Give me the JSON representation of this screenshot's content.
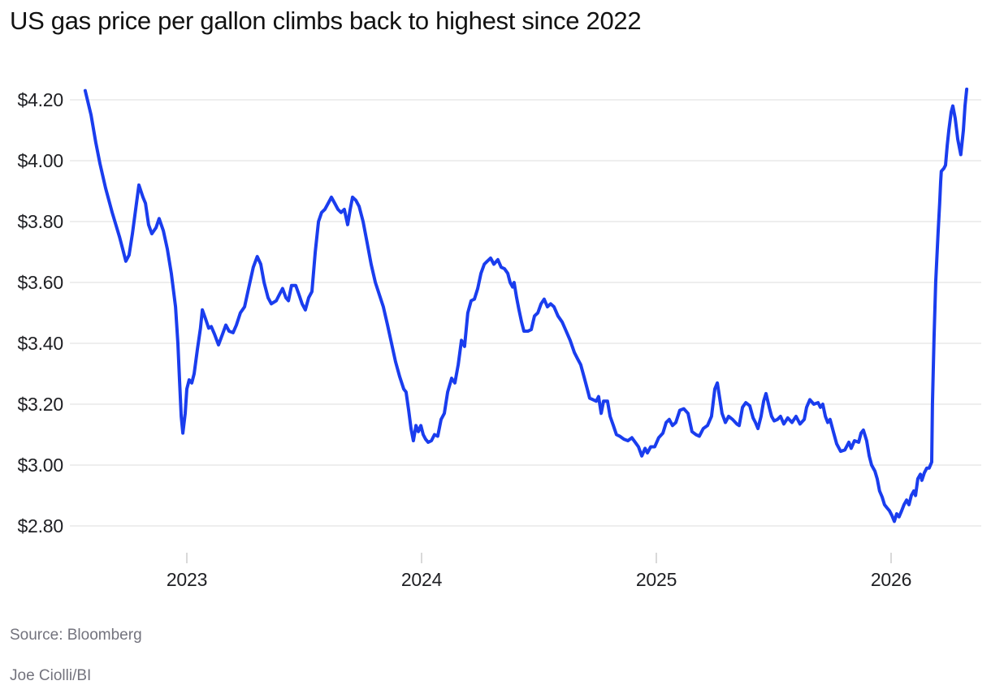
{
  "title": "US gas price per gallon climbs back to highest since 2022",
  "source": "Source: Bloomberg",
  "credit": "Joe Ciolli/BI",
  "colors": {
    "line": "#1a3dee",
    "gridline": "#e8e8e8",
    "tick": "#d9d9d9",
    "title_text": "#121212",
    "axis_text": "#1e1f23",
    "source_text": "#73737d",
    "background": "#ffffff"
  },
  "chart_data": {
    "type": "line",
    "title": "US gas price per gallon climbs back to highest since 2022",
    "xlabel": "",
    "ylabel": "",
    "grid": "horizontal",
    "legend": "none",
    "x_range": [
      2022.55,
      2026.35
    ],
    "y_range": [
      2.72,
      4.3
    ],
    "x_ticks": [
      {
        "value": 2023,
        "label": "2023"
      },
      {
        "value": 2024,
        "label": "2024"
      },
      {
        "value": 2025,
        "label": "2025"
      },
      {
        "value": 2026,
        "label": "2026"
      }
    ],
    "y_ticks": [
      {
        "value": 4.2,
        "label": "$4.20"
      },
      {
        "value": 4.0,
        "label": "$4.00"
      },
      {
        "value": 3.8,
        "label": "$3.80"
      },
      {
        "value": 3.6,
        "label": "$3.60"
      },
      {
        "value": 3.4,
        "label": "$3.40"
      },
      {
        "value": 3.2,
        "label": "$3.20"
      },
      {
        "value": 3.0,
        "label": "$3.00"
      },
      {
        "value": 2.8,
        "label": "$2.80"
      }
    ],
    "points": [
      [
        2022.567,
        4.23
      ],
      [
        2022.592,
        4.15
      ],
      [
        2022.612,
        4.06
      ],
      [
        2022.63,
        3.99
      ],
      [
        2022.654,
        3.91
      ],
      [
        2022.682,
        3.83
      ],
      [
        2022.713,
        3.75
      ],
      [
        2022.73,
        3.7
      ],
      [
        2022.74,
        3.67
      ],
      [
        2022.754,
        3.69
      ],
      [
        2022.768,
        3.76
      ],
      [
        2022.782,
        3.84
      ],
      [
        2022.796,
        3.92
      ],
      [
        2022.813,
        3.88
      ],
      [
        2022.824,
        3.86
      ],
      [
        2022.837,
        3.79
      ],
      [
        2022.851,
        3.76
      ],
      [
        2022.869,
        3.78
      ],
      [
        2022.882,
        3.81
      ],
      [
        2022.9,
        3.77
      ],
      [
        2022.917,
        3.71
      ],
      [
        2022.934,
        3.63
      ],
      [
        2022.952,
        3.52
      ],
      [
        2022.962,
        3.4
      ],
      [
        2022.969,
        3.28
      ],
      [
        2022.976,
        3.16
      ],
      [
        2022.983,
        3.105
      ],
      [
        2022.993,
        3.17
      ],
      [
        2023.0,
        3.25
      ],
      [
        2023.01,
        3.28
      ],
      [
        2023.021,
        3.27
      ],
      [
        2023.031,
        3.3
      ],
      [
        2023.045,
        3.38
      ],
      [
        2023.058,
        3.45
      ],
      [
        2023.066,
        3.51
      ],
      [
        2023.08,
        3.48
      ],
      [
        2023.093,
        3.45
      ],
      [
        2023.104,
        3.455
      ],
      [
        2023.118,
        3.43
      ],
      [
        2023.135,
        3.395
      ],
      [
        2023.152,
        3.43
      ],
      [
        2023.166,
        3.46
      ],
      [
        2023.18,
        3.44
      ],
      [
        2023.197,
        3.435
      ],
      [
        2023.211,
        3.46
      ],
      [
        2023.228,
        3.5
      ],
      [
        2023.246,
        3.52
      ],
      [
        2023.263,
        3.58
      ],
      [
        2023.283,
        3.65
      ],
      [
        2023.3,
        3.685
      ],
      [
        2023.315,
        3.66
      ],
      [
        2023.329,
        3.6
      ],
      [
        2023.346,
        3.55
      ],
      [
        2023.36,
        3.53
      ],
      [
        2023.381,
        3.54
      ],
      [
        2023.394,
        3.56
      ],
      [
        2023.408,
        3.58
      ],
      [
        2023.422,
        3.55
      ],
      [
        2023.433,
        3.54
      ],
      [
        2023.446,
        3.59
      ],
      [
        2023.464,
        3.59
      ],
      [
        2023.478,
        3.56
      ],
      [
        2023.491,
        3.53
      ],
      [
        2023.505,
        3.51
      ],
      [
        2023.519,
        3.55
      ],
      [
        2023.533,
        3.57
      ],
      [
        2023.547,
        3.7
      ],
      [
        2023.561,
        3.8
      ],
      [
        2023.574,
        3.83
      ],
      [
        2023.588,
        3.84
      ],
      [
        2023.602,
        3.86
      ],
      [
        2023.616,
        3.88
      ],
      [
        2023.63,
        3.86
      ],
      [
        2023.644,
        3.84
      ],
      [
        2023.657,
        3.83
      ],
      [
        2023.671,
        3.84
      ],
      [
        2023.685,
        3.79
      ],
      [
        2023.696,
        3.84
      ],
      [
        2023.706,
        3.88
      ],
      [
        2023.72,
        3.87
      ],
      [
        2023.734,
        3.85
      ],
      [
        2023.751,
        3.8
      ],
      [
        2023.768,
        3.73
      ],
      [
        2023.785,
        3.66
      ],
      [
        2023.803,
        3.6
      ],
      [
        2023.82,
        3.56
      ],
      [
        2023.837,
        3.52
      ],
      [
        2023.855,
        3.46
      ],
      [
        2023.872,
        3.4
      ],
      [
        2023.889,
        3.34
      ],
      [
        2023.907,
        3.29
      ],
      [
        2023.924,
        3.25
      ],
      [
        2023.934,
        3.24
      ],
      [
        2023.945,
        3.18
      ],
      [
        2023.955,
        3.12
      ],
      [
        2023.965,
        3.08
      ],
      [
        2023.976,
        3.13
      ],
      [
        2023.986,
        3.11
      ],
      [
        2023.997,
        3.13
      ],
      [
        2024.007,
        3.1
      ],
      [
        2024.017,
        3.085
      ],
      [
        2024.028,
        3.075
      ],
      [
        2024.042,
        3.08
      ],
      [
        2024.055,
        3.1
      ],
      [
        2024.069,
        3.095
      ],
      [
        2024.083,
        3.15
      ],
      [
        2024.097,
        3.17
      ],
      [
        2024.111,
        3.24
      ],
      [
        2024.128,
        3.285
      ],
      [
        2024.142,
        3.27
      ],
      [
        2024.156,
        3.33
      ],
      [
        2024.17,
        3.41
      ],
      [
        2024.183,
        3.39
      ],
      [
        2024.197,
        3.5
      ],
      [
        2024.211,
        3.54
      ],
      [
        2024.225,
        3.545
      ],
      [
        2024.239,
        3.58
      ],
      [
        2024.253,
        3.63
      ],
      [
        2024.267,
        3.66
      ],
      [
        2024.28,
        3.67
      ],
      [
        2024.294,
        3.68
      ],
      [
        2024.308,
        3.66
      ],
      [
        2024.325,
        3.675
      ],
      [
        2024.339,
        3.65
      ],
      [
        2024.353,
        3.645
      ],
      [
        2024.367,
        3.63
      ],
      [
        2024.377,
        3.6
      ],
      [
        2024.388,
        3.585
      ],
      [
        2024.394,
        3.6
      ],
      [
        2024.405,
        3.55
      ],
      [
        2024.415,
        3.51
      ],
      [
        2024.426,
        3.47
      ],
      [
        2024.436,
        3.44
      ],
      [
        2024.453,
        3.44
      ],
      [
        2024.467,
        3.445
      ],
      [
        2024.481,
        3.49
      ],
      [
        2024.495,
        3.5
      ],
      [
        2024.509,
        3.53
      ],
      [
        2024.522,
        3.545
      ],
      [
        2024.536,
        3.52
      ],
      [
        2024.55,
        3.53
      ],
      [
        2024.564,
        3.52
      ],
      [
        2024.581,
        3.49
      ],
      [
        2024.599,
        3.47
      ],
      [
        2024.616,
        3.44
      ],
      [
        2024.633,
        3.41
      ],
      [
        2024.651,
        3.37
      ],
      [
        2024.664,
        3.35
      ],
      [
        2024.678,
        3.33
      ],
      [
        2024.692,
        3.29
      ],
      [
        2024.706,
        3.25
      ],
      [
        2024.716,
        3.22
      ],
      [
        2024.73,
        3.215
      ],
      [
        2024.744,
        3.21
      ],
      [
        2024.754,
        3.225
      ],
      [
        2024.765,
        3.17
      ],
      [
        2024.775,
        3.21
      ],
      [
        2024.792,
        3.21
      ],
      [
        2024.803,
        3.16
      ],
      [
        2024.817,
        3.13
      ],
      [
        2024.83,
        3.1
      ],
      [
        2024.844,
        3.095
      ],
      [
        2024.862,
        3.085
      ],
      [
        2024.879,
        3.08
      ],
      [
        2024.896,
        3.09
      ],
      [
        2024.91,
        3.075
      ],
      [
        2024.924,
        3.06
      ],
      [
        2024.938,
        3.03
      ],
      [
        2024.952,
        3.055
      ],
      [
        2024.962,
        3.04
      ],
      [
        2024.976,
        3.06
      ],
      [
        2024.993,
        3.06
      ],
      [
        2025.01,
        3.09
      ],
      [
        2025.028,
        3.105
      ],
      [
        2025.042,
        3.14
      ],
      [
        2025.055,
        3.15
      ],
      [
        2025.069,
        3.13
      ],
      [
        2025.083,
        3.14
      ],
      [
        2025.1,
        3.18
      ],
      [
        2025.117,
        3.185
      ],
      [
        2025.135,
        3.17
      ],
      [
        2025.152,
        3.11
      ],
      [
        2025.169,
        3.1
      ],
      [
        2025.183,
        3.095
      ],
      [
        2025.2,
        3.12
      ],
      [
        2025.218,
        3.13
      ],
      [
        2025.235,
        3.16
      ],
      [
        2025.249,
        3.25
      ],
      [
        2025.26,
        3.27
      ],
      [
        2025.27,
        3.22
      ],
      [
        2025.28,
        3.17
      ],
      [
        2025.294,
        3.14
      ],
      [
        2025.308,
        3.16
      ],
      [
        2025.325,
        3.15
      ],
      [
        2025.343,
        3.135
      ],
      [
        2025.353,
        3.13
      ],
      [
        2025.367,
        3.19
      ],
      [
        2025.381,
        3.205
      ],
      [
        2025.398,
        3.195
      ],
      [
        2025.412,
        3.155
      ],
      [
        2025.422,
        3.14
      ],
      [
        2025.433,
        3.12
      ],
      [
        2025.446,
        3.16
      ],
      [
        2025.457,
        3.21
      ],
      [
        2025.467,
        3.235
      ],
      [
        2025.481,
        3.19
      ],
      [
        2025.491,
        3.16
      ],
      [
        2025.502,
        3.145
      ],
      [
        2025.516,
        3.15
      ],
      [
        2025.529,
        3.16
      ],
      [
        2025.543,
        3.135
      ],
      [
        2025.56,
        3.155
      ],
      [
        2025.578,
        3.14
      ],
      [
        2025.595,
        3.16
      ],
      [
        2025.612,
        3.135
      ],
      [
        2025.63,
        3.15
      ],
      [
        2025.64,
        3.19
      ],
      [
        2025.654,
        3.215
      ],
      [
        2025.671,
        3.2
      ],
      [
        2025.689,
        3.205
      ],
      [
        2025.699,
        3.19
      ],
      [
        2025.709,
        3.2
      ],
      [
        2025.72,
        3.16
      ],
      [
        2025.73,
        3.14
      ],
      [
        2025.74,
        3.15
      ],
      [
        2025.754,
        3.11
      ],
      [
        2025.768,
        3.07
      ],
      [
        2025.785,
        3.045
      ],
      [
        2025.803,
        3.05
      ],
      [
        2025.82,
        3.075
      ],
      [
        2025.83,
        3.055
      ],
      [
        2025.844,
        3.08
      ],
      [
        2025.862,
        3.075
      ],
      [
        2025.872,
        3.105
      ],
      [
        2025.882,
        3.115
      ],
      [
        2025.896,
        3.08
      ],
      [
        2025.907,
        3.03
      ],
      [
        2025.917,
        3.0
      ],
      [
        2025.931,
        2.98
      ],
      [
        2025.941,
        2.955
      ],
      [
        2025.951,
        2.915
      ],
      [
        2025.962,
        2.895
      ],
      [
        2025.972,
        2.87
      ],
      [
        2025.982,
        2.86
      ],
      [
        2025.993,
        2.85
      ],
      [
        2026.003,
        2.835
      ],
      [
        2026.014,
        2.815
      ],
      [
        2026.024,
        2.84
      ],
      [
        2026.034,
        2.83
      ],
      [
        2026.045,
        2.85
      ],
      [
        2026.055,
        2.87
      ],
      [
        2026.066,
        2.885
      ],
      [
        2026.076,
        2.87
      ],
      [
        2026.086,
        2.9
      ],
      [
        2026.097,
        2.915
      ],
      [
        2026.104,
        2.9
      ],
      [
        2026.114,
        2.955
      ],
      [
        2026.125,
        2.97
      ],
      [
        2026.131,
        2.95
      ],
      [
        2026.142,
        2.975
      ],
      [
        2026.152,
        2.99
      ],
      [
        2026.162,
        2.99
      ],
      [
        2026.173,
        3.01
      ],
      [
        2026.176,
        3.2
      ],
      [
        2026.183,
        3.42
      ],
      [
        2026.19,
        3.6
      ],
      [
        2026.2,
        3.76
      ],
      [
        2026.207,
        3.86
      ],
      [
        2026.211,
        3.93
      ],
      [
        2026.214,
        3.965
      ],
      [
        2026.225,
        3.975
      ],
      [
        2026.232,
        3.985
      ],
      [
        2026.239,
        4.05
      ],
      [
        2026.246,
        4.1
      ],
      [
        2026.256,
        4.16
      ],
      [
        2026.263,
        4.18
      ],
      [
        2026.273,
        4.14
      ],
      [
        2026.284,
        4.07
      ],
      [
        2026.297,
        4.02
      ],
      [
        2026.308,
        4.1
      ],
      [
        2026.315,
        4.18
      ],
      [
        2026.322,
        4.235
      ]
    ]
  }
}
